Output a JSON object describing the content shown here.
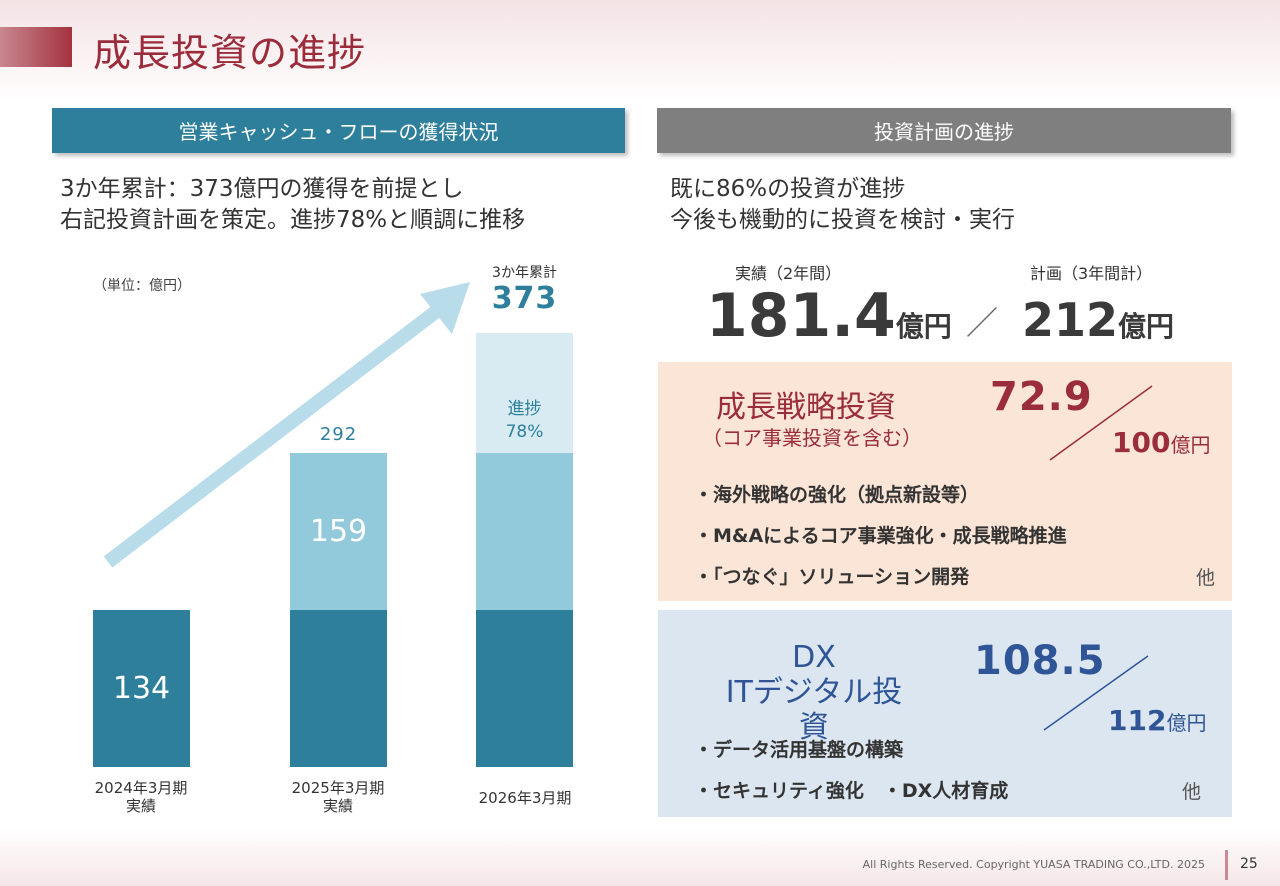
{
  "page": {
    "title": "成長投資の進捗"
  },
  "left": {
    "header": "営業キャッシュ・フローの獲得状況",
    "lead_line1": "3か年累計：373億円の獲得を前提とし",
    "lead_line2": "右記投資計画を策定。進捗78%と順調に推移",
    "unit": "（単位：億円）",
    "cumulative_label": "3か年累計",
    "cumulative_value": "373",
    "progress_label": "進捗",
    "progress_value": "78%",
    "bar1_value": "134",
    "bar2_total": "292",
    "bar2_upper": "159",
    "x1_line1": "2024年3月期",
    "x1_line2": "実績",
    "x2_line1": "2025年3月期",
    "x2_line2": "実績",
    "x3_line1": "2026年3月期"
  },
  "chart_data": {
    "type": "bar",
    "stacked": true,
    "categories": [
      "2024年3月期 実績",
      "2025年3月期 実績",
      "2026年3月期"
    ],
    "series": [
      {
        "values": [
          134,
          134,
          134
        ],
        "color": "#2d7f9b"
      },
      {
        "values": [
          0,
          159,
          159
        ],
        "color": "#92cadb"
      },
      {
        "values": [
          0,
          0,
          80
        ],
        "color": "#d8ebf3"
      }
    ],
    "totals": [
      134,
      292,
      373
    ],
    "annotations": [
      "3か年累計 373",
      "進捗 78%"
    ]
  },
  "right": {
    "header": "投資計画の進捗",
    "lead_line1": "既に86%の投資が進捗",
    "lead_line2": "今後も機動的に投資を検討・実行",
    "actual_label": "実績（2年間）",
    "plan_label": "計画（3年間計）",
    "actual_value": "181.4",
    "plan_value": "212",
    "unit": "億円",
    "slash": "／",
    "growth": {
      "title": "成長戦略投資",
      "subtitle": "（コア事業投資を含む）",
      "actual": "72.9",
      "plan": "100",
      "unit": "億円",
      "bullets": [
        "・海外戦略の強化（拠点新設等）",
        "・M&Aによるコア事業強化・成長戦略推進",
        "・「つなぐ」ソリューション開発"
      ],
      "other": "他"
    },
    "dx": {
      "title1": "DX",
      "title2": "ITデジタル投資",
      "actual": "108.5",
      "plan": "112",
      "unit": "億円",
      "bullet1": "・データ活用基盤の構築",
      "bullet2": "・セキュリティ強化　・DX人材育成",
      "other": "他"
    }
  },
  "footer": {
    "copyright": "All Rights Reserved. Copyright  YUASA TRADING CO.,LTD. 2025",
    "page_number": "25"
  },
  "colors": {
    "title": "#9b2c3b",
    "teal": "#2d7f9b",
    "light_teal": "#92cadb",
    "pale_teal": "#d8ebf3",
    "gray_header": "#7f7f7f",
    "growth_red": "#9b2c3b",
    "dx_blue": "#2f5597"
  }
}
